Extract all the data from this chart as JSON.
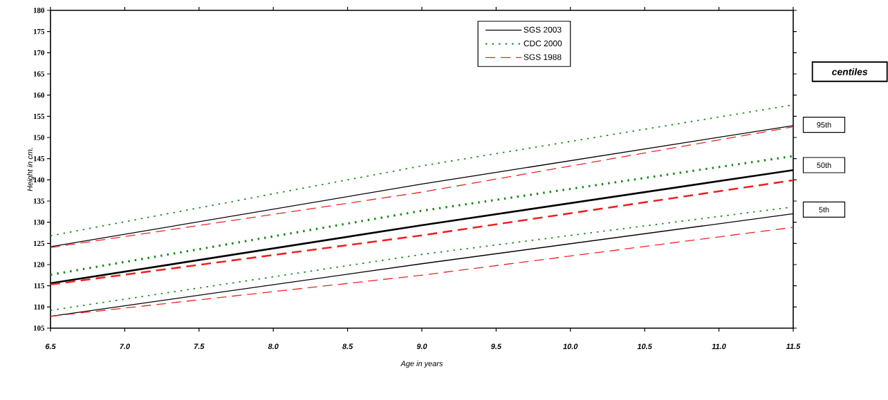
{
  "chart_data": {
    "type": "line",
    "xlabel": "Age in years",
    "ylabel": "Height in cm.",
    "xlim": [
      6.5,
      11.5
    ],
    "ylim": [
      105,
      180
    ],
    "xticks": [
      6.5,
      {
        "value": 7,
        "label": "7.0"
      },
      7.5,
      {
        "value": 8,
        "label": "8.0"
      },
      8.5,
      {
        "value": 9,
        "label": "9.0"
      },
      9.5,
      {
        "value": 10,
        "label": "10.0"
      },
      10.5,
      {
        "value": 11,
        "label": "11.0"
      },
      11.5
    ],
    "yticks": [
      105,
      110,
      115,
      120,
      125,
      130,
      135,
      140,
      145,
      150,
      155,
      160,
      165,
      170,
      175,
      180
    ],
    "x": [
      6.5,
      9.0,
      11.5
    ],
    "series": [
      {
        "name": "SGS 2003",
        "color": "#000000",
        "line_style": "solid",
        "values": [
          124.2,
          139.0,
          152.8
        ]
      },
      {
        "color": "#000000",
        "line_style": "solid",
        "values": [
          115.6,
          129.3,
          142.3
        ]
      },
      {
        "color": "#000000",
        "line_style": "solid",
        "values": [
          107.8,
          120.2,
          132.0
        ]
      },
      {
        "name": "CDC 2000",
        "color": "#1a8a1a",
        "line_style": "dotted",
        "values": [
          126.8,
          143.3,
          157.7
        ]
      },
      {
        "color": "#1a8a1a",
        "line_style": "dotted",
        "values": [
          117.6,
          132.7,
          145.6
        ]
      },
      {
        "color": "#1a8a1a",
        "line_style": "dotted",
        "values": [
          109.2,
          122.4,
          133.6
        ]
      },
      {
        "name": "SGS 1988",
        "color": "#ee2222",
        "line_style": "dashed",
        "values": [
          124.0,
          137.1,
          152.5
        ]
      },
      {
        "color": "#ee2222",
        "line_style": "dashed",
        "values": [
          115.3,
          126.9,
          139.9
        ]
      },
      {
        "color": "#ee2222",
        "line_style": "dashed",
        "values": [
          107.8,
          117.5,
          128.8
        ]
      }
    ],
    "legend": "top",
    "annotations": [
      "centiles",
      "95th",
      "50th",
      "5th"
    ]
  }
}
